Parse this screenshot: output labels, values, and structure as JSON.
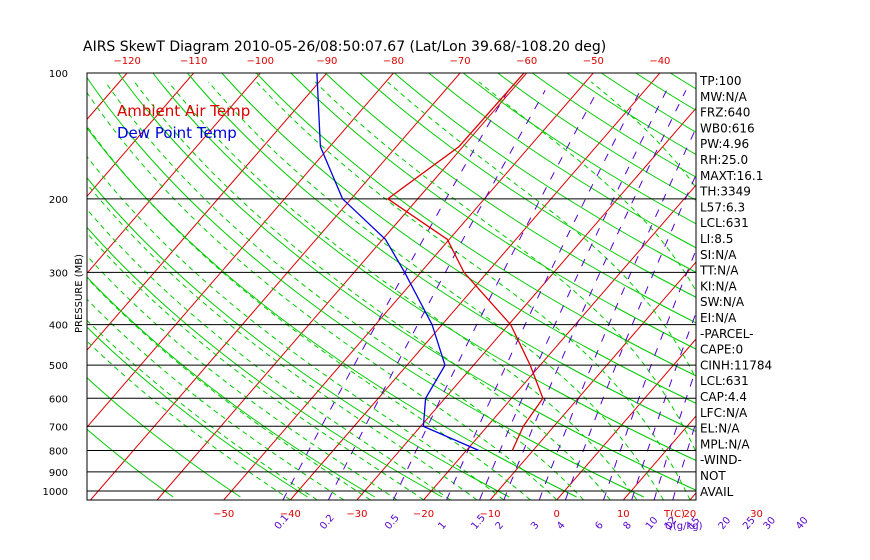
{
  "chart_data": {
    "type": "line",
    "title": "AIRS SkewT Diagram 2010-05-26/08:50:07.67 (Lat/Lon 39.68/-108.20 deg)",
    "ylabel": "PRESSURE (MB)",
    "xlabel": "T(C)",
    "mixing_ratio_label": "Q(g/kg)",
    "log_pressure_axis": true,
    "pressure_ticks": [
      100,
      200,
      300,
      400,
      500,
      600,
      700,
      800,
      900,
      1000
    ],
    "top_temp_ticks": [
      -120,
      -110,
      -100,
      -90,
      -80,
      -70,
      -60,
      -50,
      -40
    ],
    "bottom_temp_ticks": [
      -50,
      -40,
      -30,
      -20,
      -10,
      0,
      10,
      20,
      30
    ],
    "mixing_ratio_ticks": [
      "0.1",
      "0.2",
      "0.5",
      "1",
      "1.5",
      "2",
      "3",
      "4",
      "6",
      "8",
      "10",
      "12",
      "15",
      "20",
      "25",
      "30",
      "40"
    ],
    "colors": {
      "ambient": "#dd0000",
      "dewpoint": "#0000dd",
      "isotherm": "#dd0000",
      "dry_adiabat": "#00cc00",
      "moist_adiabat": "#00cc00",
      "mixing_ratio": "#5500cc",
      "pressure_line": "#000000",
      "tick_label": "#dd0000"
    },
    "series": [
      {
        "name": "Ambient Air Temp",
        "pressure": [
          100,
          150,
          200,
          250,
          300,
          400,
          500,
          600,
          700,
          800
        ],
        "temperature": [
          -60.4,
          -60.6,
          -64.5,
          -50.3,
          -43.5,
          -29.7,
          -21.5,
          -15.3,
          -14.6,
          -13.1
        ]
      },
      {
        "name": "Dew Point Temp",
        "pressure": [
          100,
          150,
          200,
          250,
          300,
          400,
          500,
          600,
          700,
          800
        ],
        "temperature": [
          -91.5,
          -81.4,
          -71.3,
          -59.6,
          -52.4,
          -41.5,
          -34.3,
          -32.9,
          -29.6,
          -18.1
        ]
      }
    ],
    "stats": [
      "TP:100",
      "MW:N/A",
      "FRZ:640",
      "WB0:616",
      "PW:4.96",
      "RH:25.0",
      "MAXT:16.1",
      "TH:3349",
      "L57:6.3",
      "LCL:631",
      "LI:8.5",
      "SI:N/A",
      "TT:N/A",
      "KI:N/A",
      "SW:N/A",
      "EI:N/A",
      "-PARCEL-",
      "CAPE:0",
      "CINH:11784",
      "LCL:631",
      "CAP:4.4",
      "LFC:N/A",
      "EL:N/A",
      "MPL:N/A",
      "-WIND-",
      "NOT",
      "AVAIL"
    ]
  }
}
